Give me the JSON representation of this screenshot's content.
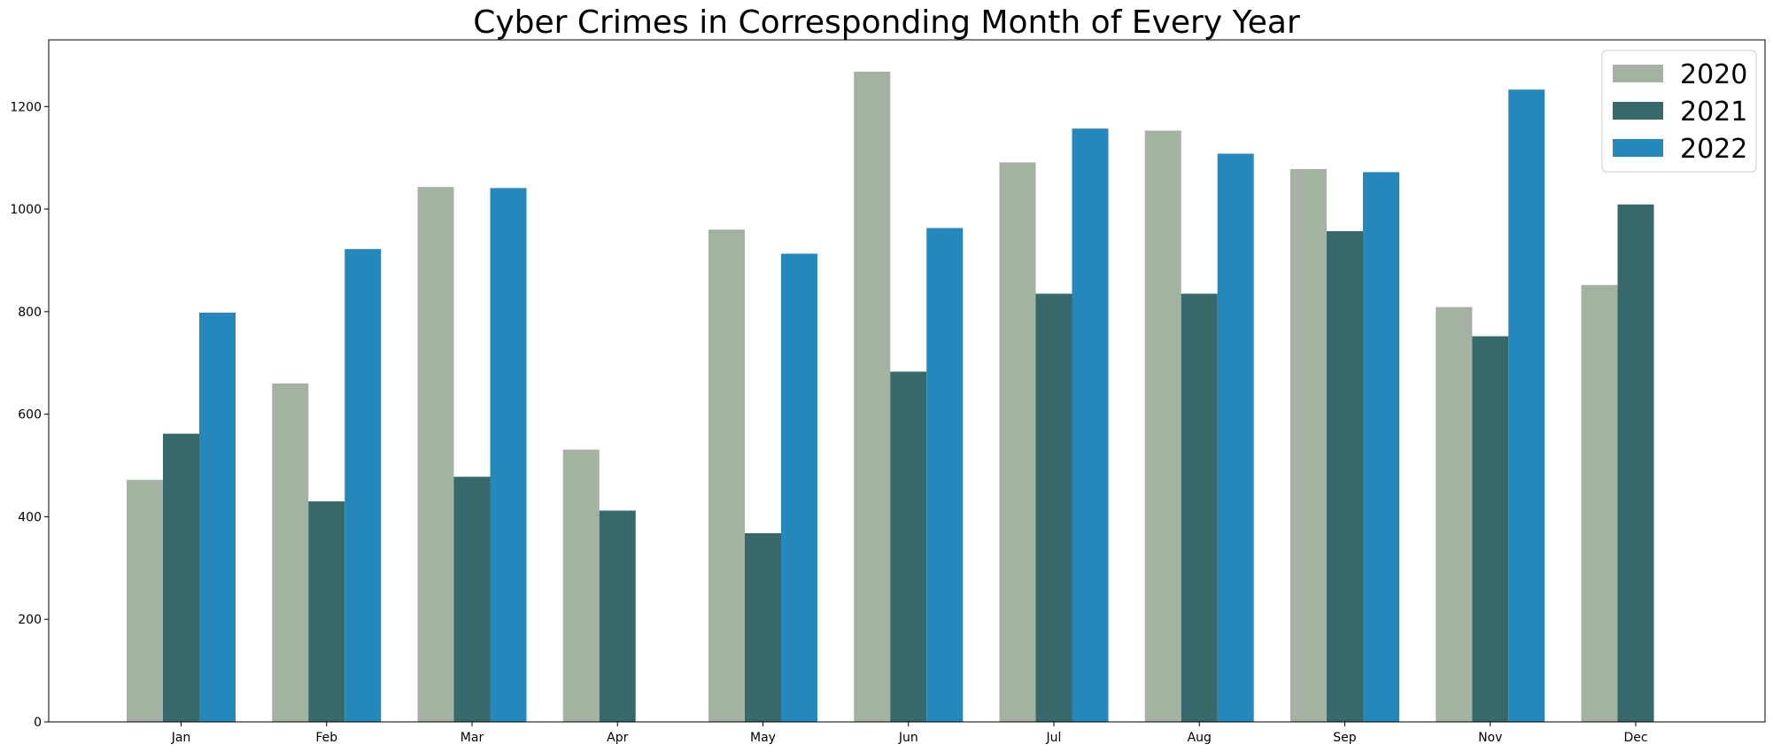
{
  "chart_data": {
    "type": "bar",
    "title": "Cyber Crimes in Corresponding Month of Every Year",
    "xlabel": "",
    "ylabel": "",
    "categories": [
      "Jan",
      "Feb",
      "Mar",
      "Apr",
      "May",
      "Jun",
      "Jul",
      "Aug",
      "Sep",
      "Nov",
      "Dec"
    ],
    "series": [
      {
        "name": "2020",
        "color": "#a3b2a1",
        "values": [
          472,
          660,
          1043,
          531,
          960,
          1268,
          1091,
          1153,
          1078,
          809,
          852
        ]
      },
      {
        "name": "2021",
        "color": "#37686a",
        "values": [
          562,
          430,
          478,
          412,
          368,
          683,
          835,
          835,
          957,
          752,
          1009
        ]
      },
      {
        "name": "2022",
        "color": "#2588bd",
        "values": [
          798,
          922,
          1041,
          null,
          913,
          963,
          1157,
          1108,
          1072,
          1233,
          null
        ]
      }
    ],
    "ylim": [
      0,
      1330
    ],
    "yticks": [
      0,
      200,
      400,
      600,
      800,
      1000,
      1200
    ],
    "grid": false,
    "legend_position": "top-right"
  }
}
